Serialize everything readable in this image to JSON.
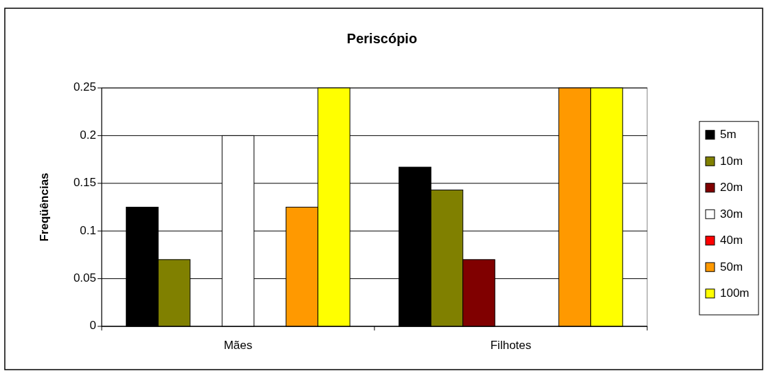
{
  "chart_data": {
    "type": "bar",
    "title": "Periscópio",
    "ylabel": "Freqüências",
    "categories": [
      "Mães",
      "Filhotes"
    ],
    "series": [
      {
        "name": "5m",
        "color": "#000000",
        "values": [
          0.125,
          0.167
        ]
      },
      {
        "name": "10m",
        "color": "#808000",
        "values": [
          0.07,
          0.143
        ]
      },
      {
        "name": "20m",
        "color": "#800000",
        "values": [
          0,
          0.07
        ]
      },
      {
        "name": "30m",
        "color": "#ffffff",
        "values": [
          0.2,
          0
        ]
      },
      {
        "name": "40m",
        "color": "#ff0000",
        "values": [
          0,
          0
        ]
      },
      {
        "name": "50m",
        "color": "#ff9900",
        "values": [
          0.125,
          0.25
        ]
      },
      {
        "name": "100m",
        "color": "#ffff00",
        "values": [
          0.25,
          0.25
        ]
      }
    ],
    "ylim": [
      0,
      0.25
    ],
    "yticks": [
      0,
      0.05,
      0.1,
      0.15,
      0.2,
      0.25
    ],
    "grid": "y",
    "legend": "right"
  }
}
